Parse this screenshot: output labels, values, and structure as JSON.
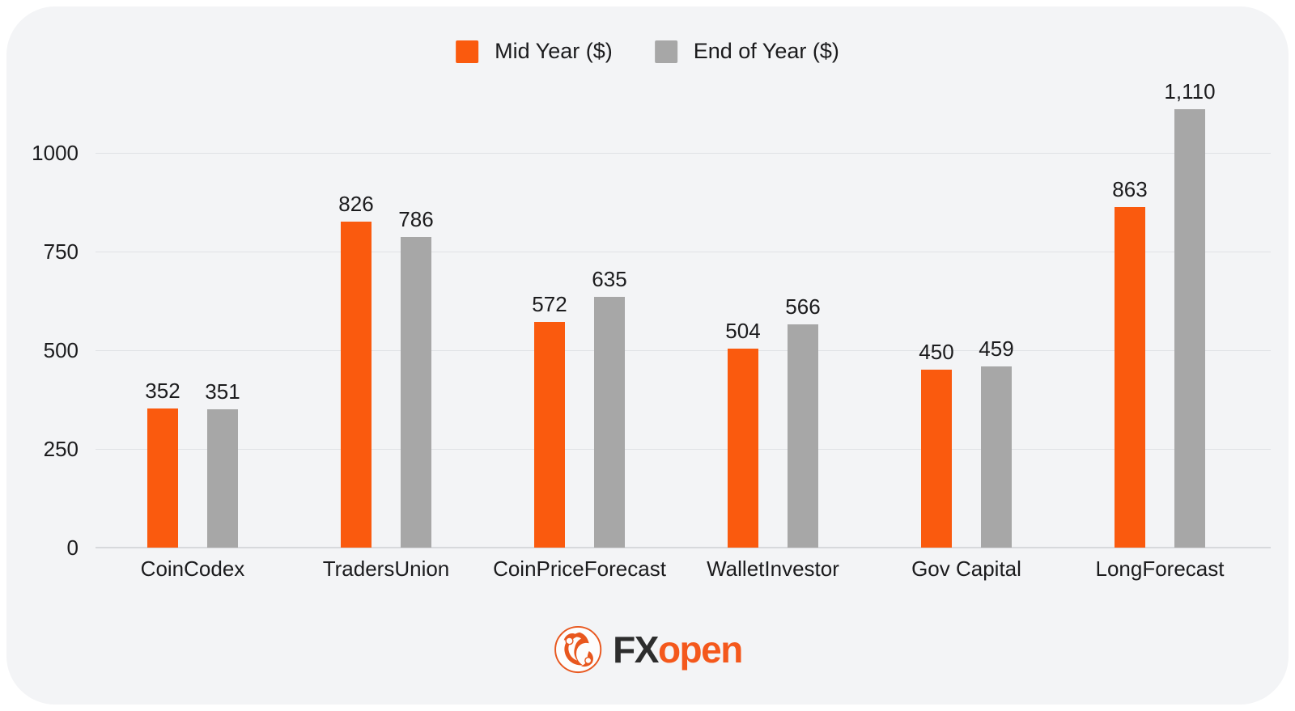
{
  "chart_data": {
    "type": "bar",
    "title": "",
    "xlabel": "",
    "ylabel": "",
    "categories": [
      "CoinCodex",
      "TradersUnion",
      "CoinPriceForecast",
      "WalletInvestor",
      "Gov Capital",
      "LongForecast"
    ],
    "series": [
      {
        "name": "Mid Year ($)",
        "color": "#fa5a0e",
        "values": [
          352,
          826,
          572,
          504,
          450,
          863
        ],
        "labels": [
          "352",
          "826",
          "572",
          "504",
          "450",
          "863"
        ]
      },
      {
        "name": "End of Year ($)",
        "color": "#a7a7a7",
        "values": [
          351,
          786,
          635,
          566,
          459,
          1110
        ],
        "labels": [
          "351",
          "786",
          "635",
          "566",
          "459",
          "1,110"
        ]
      }
    ],
    "yticks": [
      0,
      250,
      500,
      750,
      1000
    ],
    "ytick_labels": [
      "0",
      "250",
      "500",
      "750",
      "1000"
    ],
    "ylim": [
      0,
      1150
    ],
    "grid": true,
    "legend_position": "top-center"
  },
  "logo": {
    "brand_prefix": "FX",
    "brand_suffix": "open"
  },
  "colors": {
    "accent_orange": "#fa5a0e",
    "series_gray": "#a7a7a7",
    "card_background": "#f3f4f6",
    "logo_orange": "#f4581c",
    "logo_dark": "#2d2d2d",
    "text": "#1b1b1d"
  }
}
